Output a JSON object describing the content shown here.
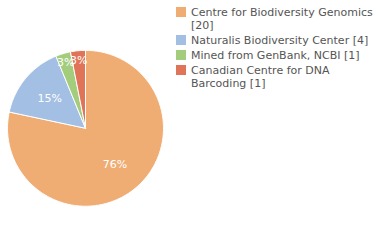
{
  "chart_data": {
    "type": "pie",
    "categories": [
      "Centre for Biodiversity Genomics [20]",
      "Naturalis Biodiversity Center [4]",
      "Mined from GenBank, NCBI [1]",
      "Canadian Centre for DNA Barcoding [1]"
    ],
    "values": [
      76,
      15,
      3,
      3
    ],
    "value_labels": [
      "76%",
      "15%",
      "3%",
      "3%"
    ],
    "colors": [
      "#f0ad73",
      "#a3bfe3",
      "#a3cd7c",
      "#e07458"
    ],
    "data_labels": true,
    "legend": "right"
  }
}
